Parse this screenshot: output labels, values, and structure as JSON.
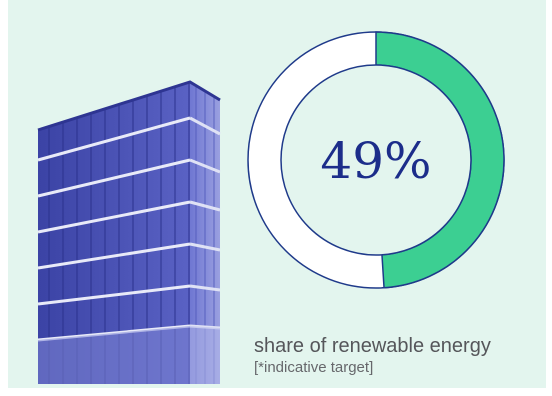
{
  "infographic": {
    "percentage_label": "49%",
    "share_fraction": 0.49,
    "caption": "share of renewable energy",
    "note": "[*indicative target]",
    "colors": {
      "background": "#e3f5ee",
      "ring_fill": "#3ccf92",
      "ring_stroke": "#1f3a8a",
      "text_dark_blue": "#1c2d8a",
      "building_blue": "#4a52b3"
    }
  }
}
